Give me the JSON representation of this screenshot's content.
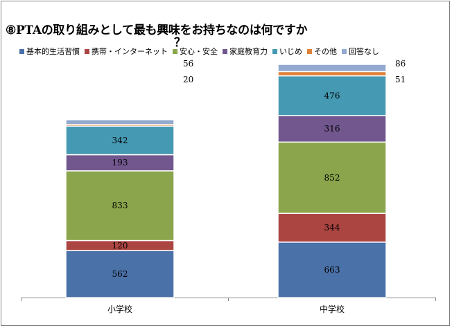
{
  "chart_data": {
    "type": "stacked-bar",
    "title": "⑧PTAの取り組みとして最も興味をお持ちなのは何ですか",
    "title_wrap": "？",
    "categories": [
      "小学校",
      "中学校"
    ],
    "series": [
      {
        "name": "基本的生活習慣",
        "color": "#4a71a8",
        "values": [
          562,
          663
        ]
      },
      {
        "name": "携帯・インターネット",
        "color": "#ab4542",
        "values": [
          120,
          344
        ]
      },
      {
        "name": "安心・安全",
        "color": "#8aa54b",
        "values": [
          833,
          852
        ]
      },
      {
        "name": "家庭教育力",
        "color": "#71578e",
        "values": [
          193,
          316
        ]
      },
      {
        "name": "いじめ",
        "color": "#4699b2",
        "values": [
          342,
          476
        ]
      },
      {
        "name": "その他",
        "color": "#e0823a",
        "values": [
          20,
          51
        ]
      },
      {
        "name": "回答なし",
        "color": "#93a9cf",
        "values": [
          56,
          86
        ]
      }
    ],
    "legend_position": "top",
    "grid": false
  }
}
